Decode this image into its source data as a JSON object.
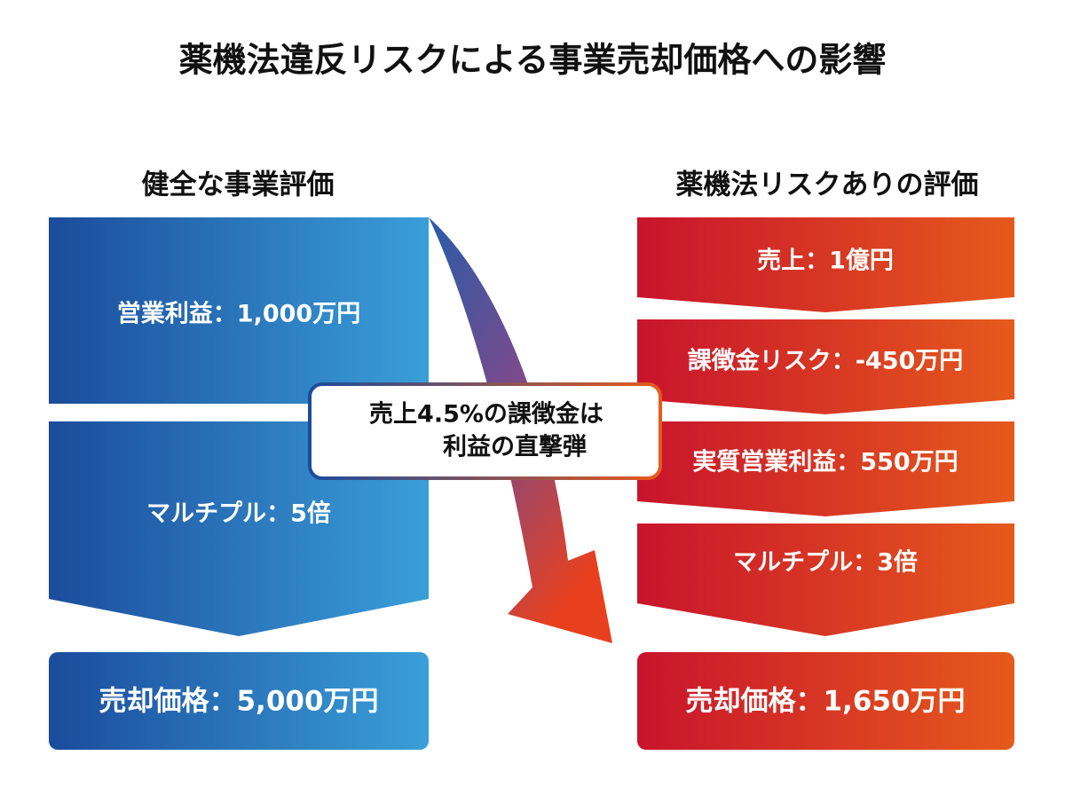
{
  "title": "薬機法違反リスクによる事業売却価格への影響",
  "left": {
    "heading": "健全な事業評価",
    "steps": [
      "営業利益：1,000万円",
      "マルチプル：5倍"
    ],
    "result": "売却価格：5,000万円"
  },
  "right": {
    "heading": "薬機法リスクありの評価",
    "steps": [
      "売上：1億円",
      "課徴金リスク：-450万円",
      "実質営業利益：550万円",
      "マルチプル：3倍"
    ],
    "result": "売却価格：1,650万円"
  },
  "callout": {
    "lines": [
      "売上4.5%の課徴金は",
      "利益の直撃弾"
    ]
  }
}
